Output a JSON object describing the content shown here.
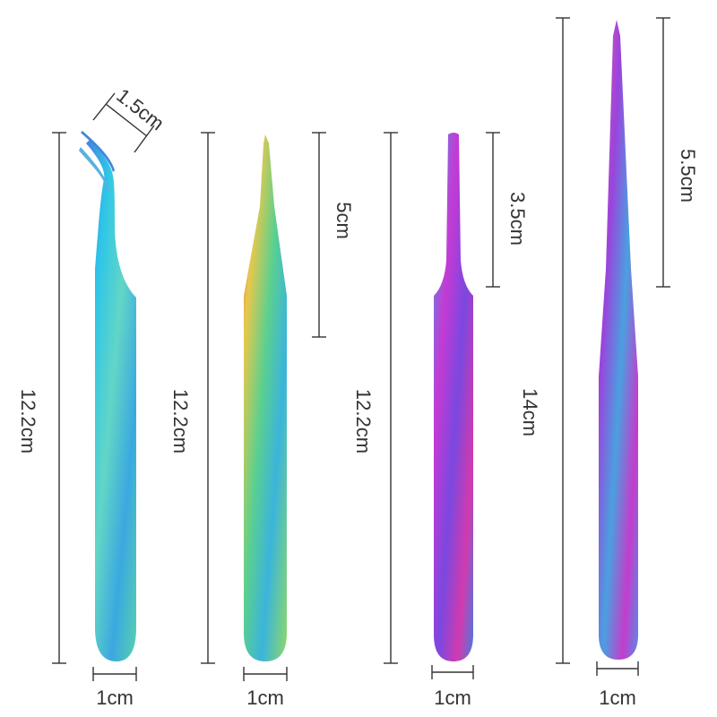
{
  "tools": [
    {
      "name": "curved-tip tweezers",
      "length_label": "12.2cm",
      "tip_label": "1.5cm",
      "width_label": "1cm",
      "palette": [
        "#3fa0d8",
        "#2ec4e6",
        "#7be0c8",
        "#43b4e0",
        "#2a9ad8"
      ]
    },
    {
      "name": "straight pointed tweezers",
      "length_label": "12.2cm",
      "tip_label": "5cm",
      "width_label": "1cm",
      "palette": [
        "#e0c24a",
        "#6ad08a",
        "#3fb6d8",
        "#56c8b0",
        "#c9b84c"
      ]
    },
    {
      "name": "blunt tip tweezers",
      "length_label": "12.2cm",
      "tip_label": "3.5cm",
      "width_label": "1cm",
      "palette": [
        "#d43ad0",
        "#8a4ae0",
        "#4a8ae6",
        "#c03ab8",
        "#e05090"
      ]
    },
    {
      "name": "long needle tweezers",
      "length_label": "14cm",
      "tip_label": "5.5cm",
      "width_label": "1cm",
      "palette": [
        "#a040d8",
        "#d040c0",
        "#4a9ae0",
        "#8050d0",
        "#e050a0"
      ]
    }
  ]
}
